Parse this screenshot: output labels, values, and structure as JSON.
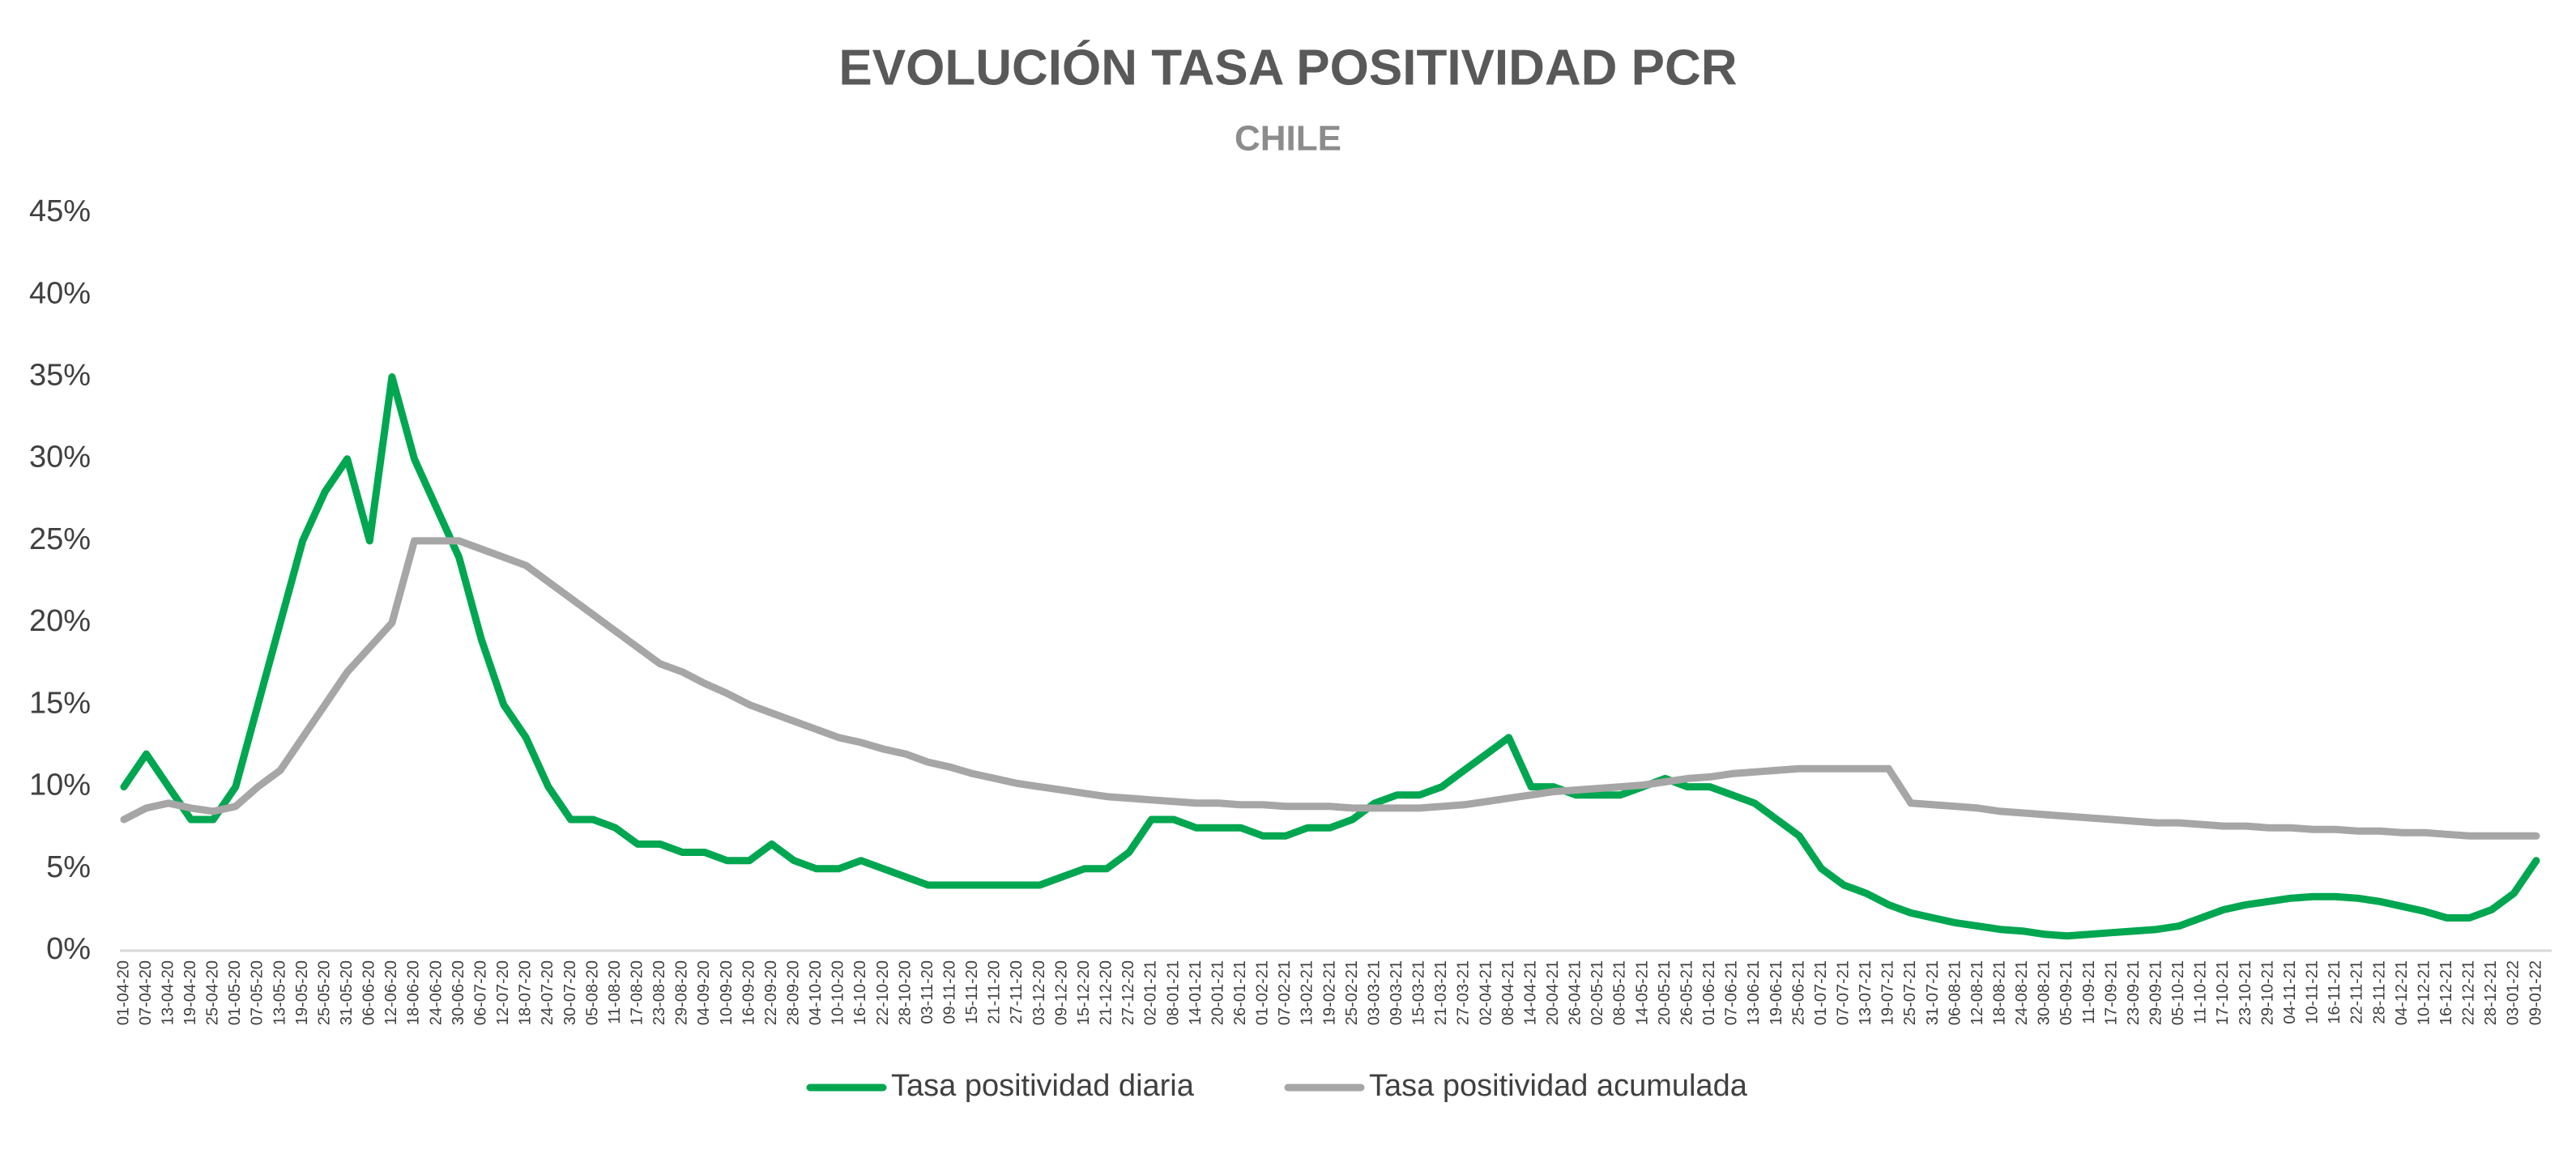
{
  "chart_data": {
    "type": "line",
    "title": "EVOLUCIÓN TASA POSITIVIDAD PCR",
    "subtitle": "CHILE",
    "categories": [
      "01-04-20",
      "07-04-20",
      "13-04-20",
      "19-04-20",
      "25-04-20",
      "01-05-20",
      "07-05-20",
      "13-05-20",
      "19-05-20",
      "25-05-20",
      "31-05-20",
      "06-06-20",
      "12-06-20",
      "18-06-20",
      "24-06-20",
      "30-06-20",
      "06-07-20",
      "12-07-20",
      "18-07-20",
      "24-07-20",
      "30-07-20",
      "05-08-20",
      "11-08-20",
      "17-08-20",
      "23-08-20",
      "29-08-20",
      "04-09-20",
      "10-09-20",
      "16-09-20",
      "22-09-20",
      "28-09-20",
      "04-10-20",
      "10-10-20",
      "16-10-20",
      "22-10-20",
      "28-10-20",
      "03-11-20",
      "09-11-20",
      "15-11-20",
      "21-11-20",
      "27-11-20",
      "03-12-20",
      "09-12-20",
      "15-12-20",
      "21-12-20",
      "27-12-20",
      "02-01-21",
      "08-01-21",
      "14-01-21",
      "20-01-21",
      "26-01-21",
      "01-02-21",
      "07-02-21",
      "13-02-21",
      "19-02-21",
      "25-02-21",
      "03-03-21",
      "09-03-21",
      "15-03-21",
      "21-03-21",
      "27-03-21",
      "02-04-21",
      "08-04-21",
      "14-04-21",
      "20-04-21",
      "26-04-21",
      "02-05-21",
      "08-05-21",
      "14-05-21",
      "20-05-21",
      "26-05-21",
      "01-06-21",
      "07-06-21",
      "13-06-21",
      "19-06-21",
      "25-06-21",
      "01-07-21",
      "07-07-21",
      "13-07-21",
      "19-07-21",
      "25-07-21",
      "31-07-21",
      "06-08-21",
      "12-08-21",
      "18-08-21",
      "24-08-21",
      "30-08-21",
      "05-09-21",
      "11-09-21",
      "17-09-21",
      "23-09-21",
      "29-09-21",
      "05-10-21",
      "11-10-21",
      "17-10-21",
      "23-10-21",
      "29-10-21",
      "04-11-21",
      "10-11-21",
      "16-11-21",
      "22-11-21",
      "28-11-21",
      "04-12-21",
      "10-12-21",
      "16-12-21",
      "22-12-21",
      "28-12-21",
      "03-01-22",
      "09-01-22"
    ],
    "series": [
      {
        "name": "Tasa positividad diaria",
        "color": "#00a650",
        "values": [
          10,
          12,
          10,
          8,
          8,
          10,
          15,
          20,
          25,
          28,
          30,
          25,
          35,
          30,
          27,
          24,
          19,
          15,
          13,
          10,
          8,
          8,
          7.5,
          6.5,
          6.5,
          6,
          6,
          5.5,
          5.5,
          6.5,
          5.5,
          5,
          5,
          5.5,
          5,
          4.5,
          4,
          4,
          4,
          4,
          4,
          4,
          4.5,
          5,
          5,
          6,
          8,
          8,
          7.5,
          7.5,
          7.5,
          7,
          7,
          7.5,
          7.5,
          8,
          9,
          9.5,
          9.5,
          10,
          11,
          12,
          13,
          10,
          10,
          9.5,
          9.5,
          9.5,
          10,
          10.5,
          10,
          10,
          9.5,
          9,
          8,
          7,
          5,
          4,
          3.5,
          2.8,
          2.3,
          2,
          1.7,
          1.5,
          1.3,
          1.2,
          1,
          0.9,
          1,
          1.1,
          1.2,
          1.3,
          1.5,
          2,
          2.5,
          2.8,
          3,
          3.2,
          3.3,
          3.3,
          3.2,
          3,
          2.7,
          2.4,
          2,
          2,
          2.5,
          3.5,
          5.5
        ]
      },
      {
        "name": "Tasa positividad acumulada",
        "color": "#a6a6a6",
        "values": [
          8,
          8.7,
          9,
          8.7,
          8.5,
          8.8,
          10,
          11,
          13,
          15,
          17,
          18.5,
          20,
          25,
          25,
          25,
          24.5,
          24,
          23.5,
          22.5,
          21.5,
          20.5,
          19.5,
          18.5,
          17.5,
          17,
          16.3,
          15.7,
          15,
          14.5,
          14,
          13.5,
          13,
          12.7,
          12.3,
          12,
          11.5,
          11.2,
          10.8,
          10.5,
          10.2,
          10,
          9.8,
          9.6,
          9.4,
          9.3,
          9.2,
          9.1,
          9,
          9,
          8.9,
          8.9,
          8.8,
          8.8,
          8.8,
          8.7,
          8.7,
          8.7,
          8.7,
          8.8,
          8.9,
          9.1,
          9.3,
          9.5,
          9.7,
          9.8,
          9.9,
          10,
          10.1,
          10.3,
          10.5,
          10.6,
          10.8,
          10.9,
          11,
          11.1,
          11.1,
          11.1,
          11.1,
          11.1,
          9,
          8.9,
          8.8,
          8.7,
          8.5,
          8.4,
          8.3,
          8.2,
          8.1,
          8,
          7.9,
          7.8,
          7.8,
          7.7,
          7.6,
          7.6,
          7.5,
          7.5,
          7.4,
          7.4,
          7.3,
          7.3,
          7.2,
          7.2,
          7.1,
          7,
          7,
          7,
          7
        ]
      }
    ],
    "ylim": [
      0,
      45
    ],
    "yticks": [
      {
        "value": 0,
        "label": "0%"
      },
      {
        "value": 5,
        "label": "5%"
      },
      {
        "value": 10,
        "label": "10%"
      },
      {
        "value": 15,
        "label": "15%"
      },
      {
        "value": 20,
        "label": "20%"
      },
      {
        "value": 25,
        "label": "25%"
      },
      {
        "value": 30,
        "label": "30%"
      },
      {
        "value": 35,
        "label": "35%"
      },
      {
        "value": 40,
        "label": "40%"
      },
      {
        "value": 45,
        "label": "45%"
      }
    ],
    "grid": false,
    "legend": "bottom"
  }
}
